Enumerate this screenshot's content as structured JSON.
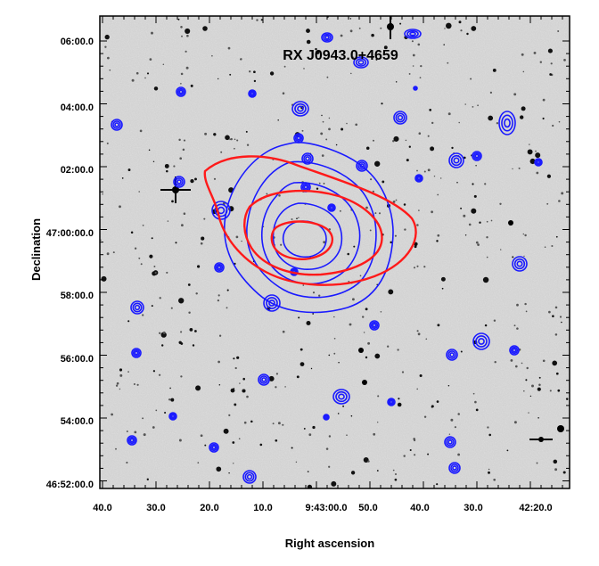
{
  "title": "RX J0943.0+4659",
  "axes": {
    "xlabel": "Right ascension",
    "ylabel": "Declination",
    "x_ticks": [
      "40.0",
      "30.0",
      "20.0",
      "10.0",
      "9:43:00.0",
      "50.0",
      "40.0",
      "30.0",
      "42:20.0"
    ],
    "y_ticks": [
      "06:00.0",
      "04:00.0",
      "02:00.0",
      "47:00:00.0",
      "58:00.0",
      "56:00.0",
      "54:00.0",
      "46:52:00.0"
    ]
  },
  "colors": {
    "background": "#c8c8c8",
    "xray_contours": "#ff1a1a",
    "radio_contours": "#1a1aff",
    "frame": "#000000"
  }
}
